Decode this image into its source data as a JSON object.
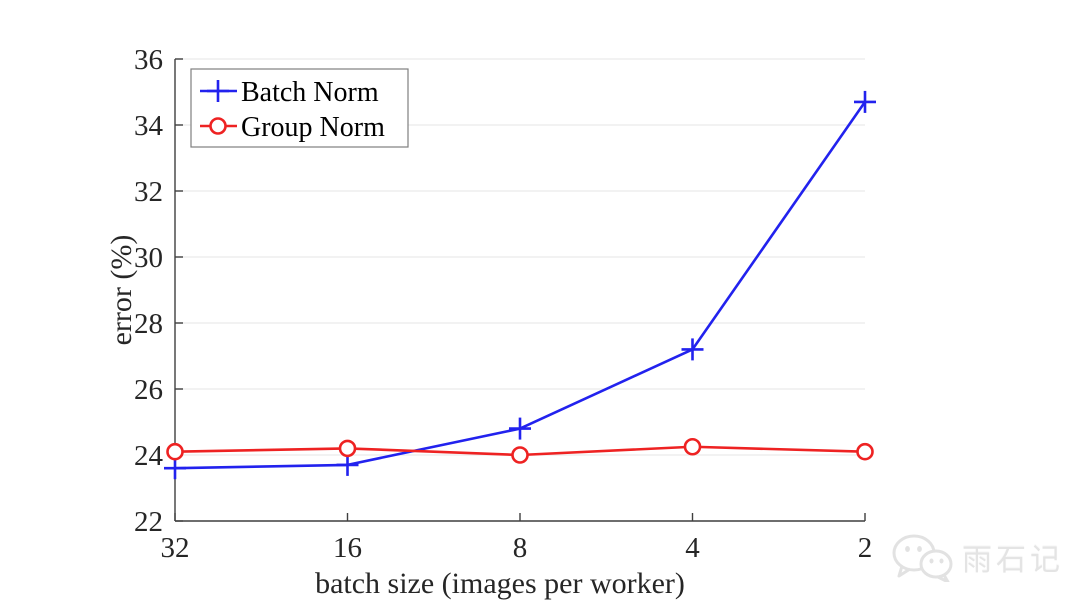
{
  "figure": {
    "background": "#ffffff"
  },
  "chart_data": {
    "type": "line",
    "title": "",
    "xlabel": "batch size (images per worker)",
    "ylabel": "error (%)",
    "categories": [
      "32",
      "16",
      "8",
      "4",
      "2"
    ],
    "ylim": [
      22,
      36
    ],
    "yticks": [
      22,
      24,
      26,
      28,
      30,
      32,
      34,
      36
    ],
    "grid": "horizontal-only",
    "legend_position": "top-left",
    "axis_color": "#3f3f3f",
    "grid_color": "#ebebeb",
    "tick_label_color": "#262626",
    "legend_border_color": "#7f7f7f",
    "series": [
      {
        "name": "Batch Norm",
        "color": "#2222ee",
        "marker": "plus",
        "values": [
          23.6,
          23.7,
          24.8,
          27.2,
          34.7
        ]
      },
      {
        "name": "Group Norm",
        "color": "#ee2222",
        "marker": "circle",
        "values": [
          24.1,
          24.2,
          24.0,
          24.25,
          24.1
        ]
      }
    ]
  },
  "watermark": {
    "icon": "wechat-icon",
    "text": "雨石记",
    "color": "#e4e4e4"
  }
}
